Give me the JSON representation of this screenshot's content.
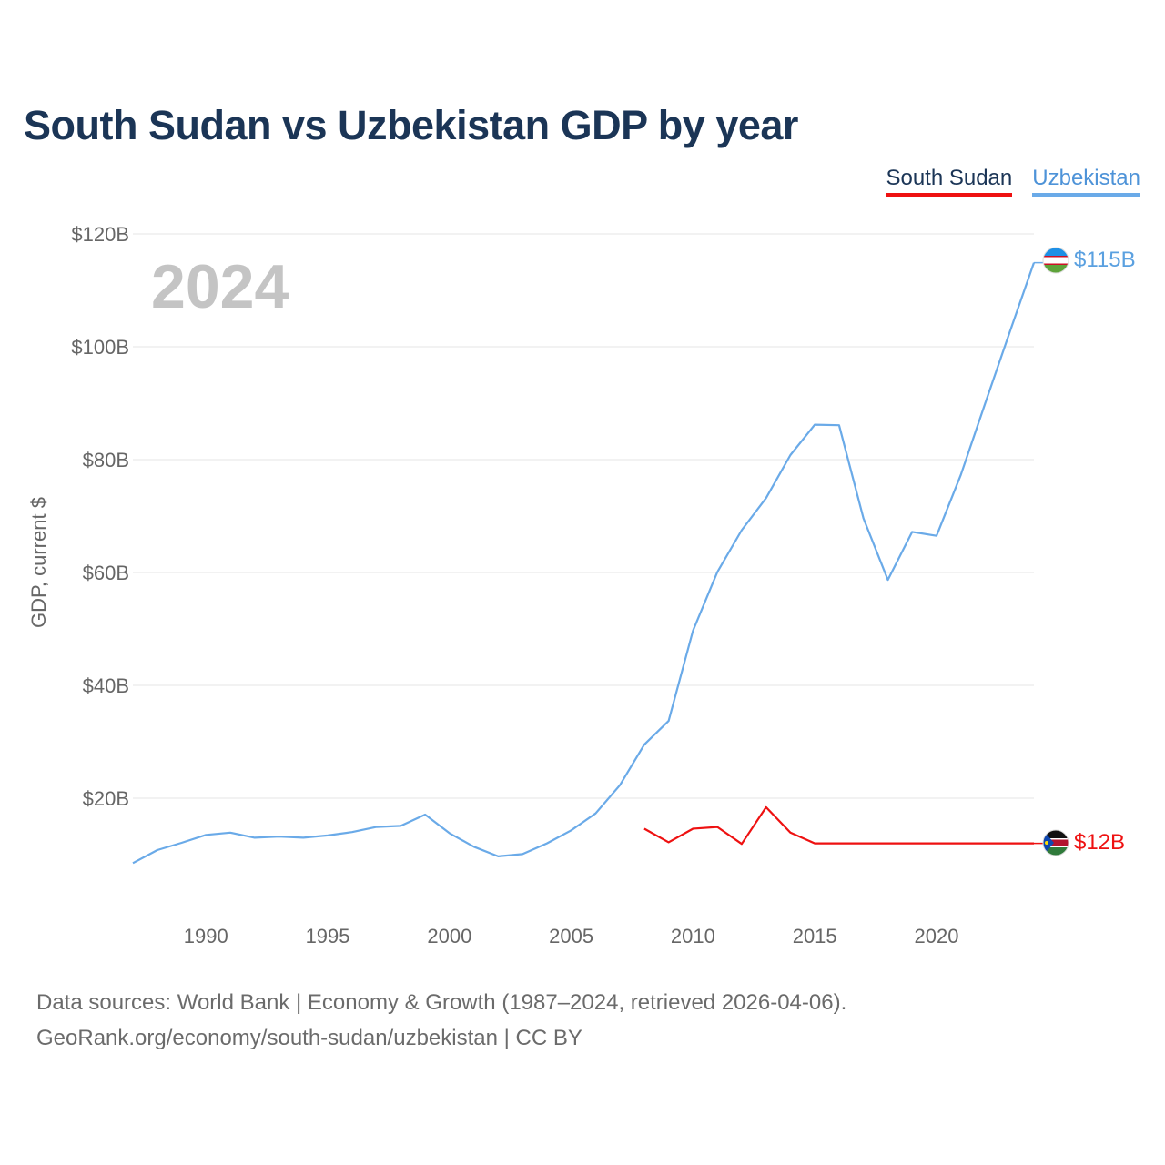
{
  "header": {
    "title": "South Sudan vs Uzbekistan GDP by year"
  },
  "legend": [
    {
      "label": "South Sudan",
      "color": "#ee1111"
    },
    {
      "label": "Uzbekistan",
      "color": "#6aaae8"
    }
  ],
  "overlay": {
    "year": "2024"
  },
  "footer": {
    "line1": "Data sources: World Bank | Economy & Growth (1987–2024, retrieved 2026-04-06).",
    "line2": "GeoRank.org/economy/south-sudan/uzbekistan | CC BY"
  },
  "chart_data": {
    "type": "line",
    "title": "South Sudan vs Uzbekistan GDP by year",
    "xlabel": "",
    "ylabel": "GDP, current $",
    "xlim": [
      1987,
      2024
    ],
    "ylim": [
      0,
      120
    ],
    "x_ticks": [
      1990,
      1995,
      2000,
      2005,
      2010,
      2015,
      2020
    ],
    "y_ticks": [
      20,
      40,
      60,
      80,
      100,
      120
    ],
    "y_tick_labels": [
      "$20B",
      "$40B",
      "$60B",
      "$80B",
      "$100B",
      "$120B"
    ],
    "x_tick_labels": [
      "1990",
      "1995",
      "2000",
      "2005",
      "2010",
      "2015",
      "2020"
    ],
    "legend_position": "top-right",
    "grid": true,
    "series": [
      {
        "name": "Uzbekistan",
        "color": "#6aaae8",
        "end_label": "$115B",
        "x": [
          1987,
          1988,
          1989,
          1990,
          1991,
          1992,
          1993,
          1994,
          1995,
          1996,
          1997,
          1998,
          1999,
          2000,
          2001,
          2002,
          2003,
          2004,
          2005,
          2006,
          2007,
          2008,
          2009,
          2010,
          2011,
          2012,
          2013,
          2014,
          2015,
          2016,
          2017,
          2018,
          2019,
          2020,
          2021,
          2022,
          2023,
          2024
        ],
        "values": [
          8.5,
          10.8,
          12.1,
          13.5,
          13.9,
          13.0,
          13.2,
          13.0,
          13.4,
          14.0,
          14.9,
          15.1,
          17.1,
          13.8,
          11.4,
          9.7,
          10.1,
          12.0,
          14.3,
          17.3,
          22.3,
          29.5,
          33.7,
          49.7,
          60.1,
          67.5,
          73.2,
          80.8,
          86.2,
          86.1,
          69.6,
          58.7,
          67.2,
          66.5,
          77.3,
          90.0,
          102.5,
          114.9
        ]
      },
      {
        "name": "South Sudan",
        "color": "#ee1111",
        "end_label": "$12B",
        "x": [
          2008,
          2009,
          2010,
          2011,
          2012,
          2013,
          2014,
          2015,
          2016,
          2017,
          2018,
          2019,
          2020,
          2021,
          2022,
          2023,
          2024
        ],
        "values": [
          14.6,
          12.2,
          14.6,
          14.9,
          11.9,
          18.4,
          13.9,
          12.0,
          12.0,
          12.0,
          12.0,
          12.0,
          12.0,
          12.0,
          12.0,
          12.0,
          12.0
        ]
      }
    ]
  }
}
